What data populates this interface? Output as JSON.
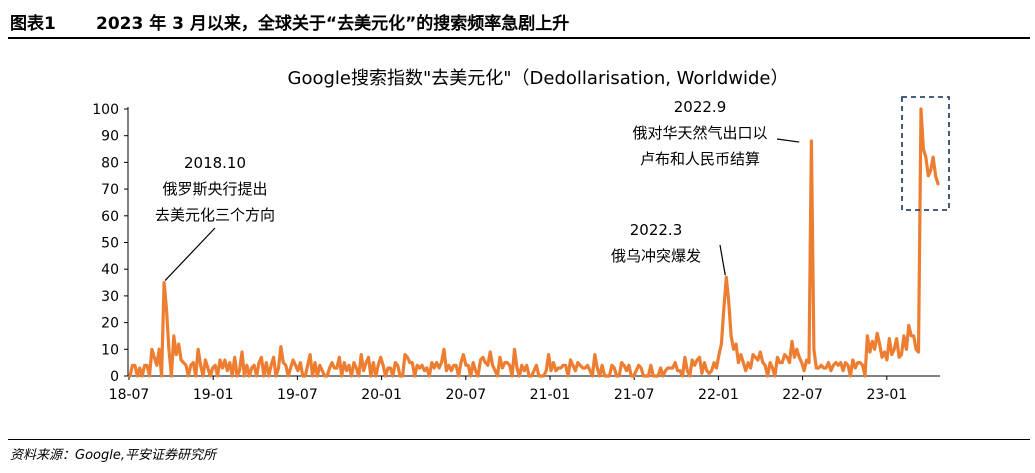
{
  "header": {
    "figure_label": "图表1",
    "figure_title": "2023 年 3 月以来，全球关于“去美元化”的搜索频率急剧上升"
  },
  "footer": {
    "source": "资料来源：Google,平安证券研究所"
  },
  "chart_data": {
    "type": "line",
    "title": "Google搜索指数\"去美元化\"（Dedollarisation, Worldwide）",
    "xlabel": "",
    "ylabel": "",
    "ylim": [
      0,
      100
    ],
    "yticks": [
      0,
      10,
      20,
      30,
      40,
      50,
      60,
      70,
      80,
      90,
      100
    ],
    "xticks": [
      "18-07",
      "19-01",
      "19-07",
      "20-01",
      "20-07",
      "21-01",
      "21-07",
      "22-01",
      "22-07",
      "23-01"
    ],
    "grid": false,
    "legend": "none",
    "color": "#ED7D31",
    "highlight_box_color": "#2E4A6B",
    "series": [
      {
        "values": [
          0,
          4,
          4,
          0,
          3,
          0,
          4,
          4,
          0,
          10,
          7,
          4,
          10,
          0,
          35,
          25,
          10,
          0,
          15,
          8,
          12,
          6,
          5,
          4,
          0,
          4,
          5,
          0,
          10,
          4,
          0,
          6,
          3,
          0,
          3,
          4,
          0,
          6,
          3,
          6,
          2,
          5,
          0,
          7,
          0,
          2,
          9,
          0,
          4,
          0,
          3,
          4,
          0,
          5,
          7,
          0,
          5,
          0,
          4,
          7,
          0,
          3,
          11,
          5,
          4,
          0,
          3,
          6,
          4,
          2,
          5,
          0,
          0,
          4,
          8,
          0,
          5,
          0,
          4,
          2,
          0,
          0,
          3,
          5,
          3,
          3,
          7,
          0,
          5,
          2,
          4,
          0,
          5,
          3,
          0,
          8,
          2,
          5,
          7,
          0,
          5,
          0,
          4,
          7,
          4,
          0,
          3,
          3,
          0,
          5,
          4,
          0,
          0,
          8,
          7,
          5,
          5,
          0,
          4,
          3,
          4,
          2,
          3,
          0,
          5,
          3,
          5,
          3,
          5,
          10,
          2,
          4,
          2,
          4,
          4,
          0,
          5,
          8,
          4,
          4,
          0,
          5,
          2,
          0,
          6,
          7,
          5,
          4,
          9,
          4,
          2,
          0,
          7,
          3,
          5,
          5,
          4,
          0,
          10,
          3,
          0,
          4,
          2,
          4,
          0,
          0,
          2,
          4,
          0,
          0,
          0,
          2,
          8,
          2,
          5,
          2,
          3,
          3,
          4,
          4,
          0,
          6,
          4,
          2,
          5,
          4,
          3,
          3,
          4,
          2,
          0,
          8,
          3,
          0,
          4,
          0,
          0,
          0,
          4,
          3,
          0,
          0,
          5,
          4,
          2,
          4,
          0,
          0,
          2,
          4,
          3,
          0,
          0,
          0,
          4,
          0,
          0,
          0,
          3,
          0,
          2,
          3,
          3,
          3,
          5,
          2,
          2,
          0,
          7,
          2,
          0,
          6,
          4,
          6,
          7,
          1,
          5,
          2,
          1,
          2,
          5,
          3,
          8,
          12,
          25,
          37,
          28,
          15,
          10,
          12,
          5,
          8,
          5,
          2,
          5,
          3,
          8,
          7,
          6,
          9,
          5,
          4,
          0,
          5,
          3,
          0,
          7,
          5,
          5,
          8,
          7,
          5,
          13,
          7,
          10,
          7,
          5,
          2,
          6,
          5,
          88,
          10,
          3,
          3,
          4,
          3,
          3,
          5,
          2,
          4,
          5,
          4,
          5,
          2,
          5,
          4,
          0,
          6,
          3,
          5,
          5,
          4,
          0,
          15,
          9,
          13,
          10,
          16,
          12,
          7,
          9,
          6,
          14,
          8,
          10,
          14,
          7,
          8,
          15,
          10,
          19,
          15,
          15,
          10,
          9,
          100,
          85,
          82,
          75,
          77,
          82,
          75,
          72
        ]
      }
    ],
    "annotations": [
      {
        "lines": [
          "2018.10",
          "俄罗斯央行提出",
          "去美元化三个方向"
        ],
        "point_index": 14
      },
      {
        "lines": [
          "2022.3",
          "俄乌冲突爆发"
        ],
        "point_index": 245
      },
      {
        "lines": [
          "2022.9",
          "俄对华天然气出口以",
          "卢布和人民币结算"
        ],
        "point_index": 275
      }
    ]
  }
}
